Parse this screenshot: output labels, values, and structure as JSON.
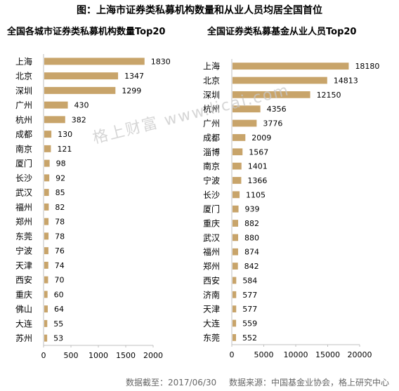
{
  "header": {
    "title": "图：上海市证券类私募机构数量和从业人员均居全国首位"
  },
  "watermark": "格上财富 www.licai.com",
  "footer": {
    "date_text": "数据截至：2017/06/30",
    "source_text": "数据来源：中国基金业协会，格上研究中心"
  },
  "colors": {
    "bar": "#C8A46A",
    "axis": "#bfbfbf"
  },
  "chart_data": [
    {
      "type": "bar",
      "orientation": "horizontal",
      "title": "全国各城市证券类私募机构数量Top20",
      "categories": [
        "上海",
        "北京",
        "深圳",
        "广州",
        "杭州",
        "成都",
        "南京",
        "厦门",
        "长沙",
        "武汉",
        "福州",
        "郑州",
        "东莞",
        "宁波",
        "天津",
        "西安",
        "重庆",
        "佛山",
        "大连",
        "苏州"
      ],
      "values": [
        1830,
        1347,
        1299,
        430,
        382,
        130,
        121,
        98,
        92,
        85,
        82,
        78,
        78,
        76,
        74,
        70,
        60,
        64,
        55,
        53
      ],
      "xlim": [
        0,
        2000
      ],
      "xticks": [
        0,
        500,
        1000,
        1500,
        2000
      ],
      "grid": false
    },
    {
      "type": "bar",
      "orientation": "horizontal",
      "title": "全国证券类私募基金从业人员Top20",
      "categories": [
        "上海",
        "北京",
        "深圳",
        "杭州",
        "广州",
        "成都",
        "淄博",
        "南京",
        "宁波",
        "长沙",
        "厦门",
        "重庆",
        "武汉",
        "福州",
        "郑州",
        "西安",
        "济南",
        "天津",
        "大连",
        "东莞"
      ],
      "values": [
        18180,
        14813,
        12150,
        4356,
        3776,
        2009,
        1567,
        1401,
        1366,
        1105,
        939,
        882,
        880,
        874,
        842,
        584,
        577,
        577,
        559,
        552
      ],
      "xlim": [
        0,
        20000
      ],
      "xticks": [
        0,
        5000,
        10000,
        15000,
        20000
      ],
      "grid": false
    }
  ]
}
